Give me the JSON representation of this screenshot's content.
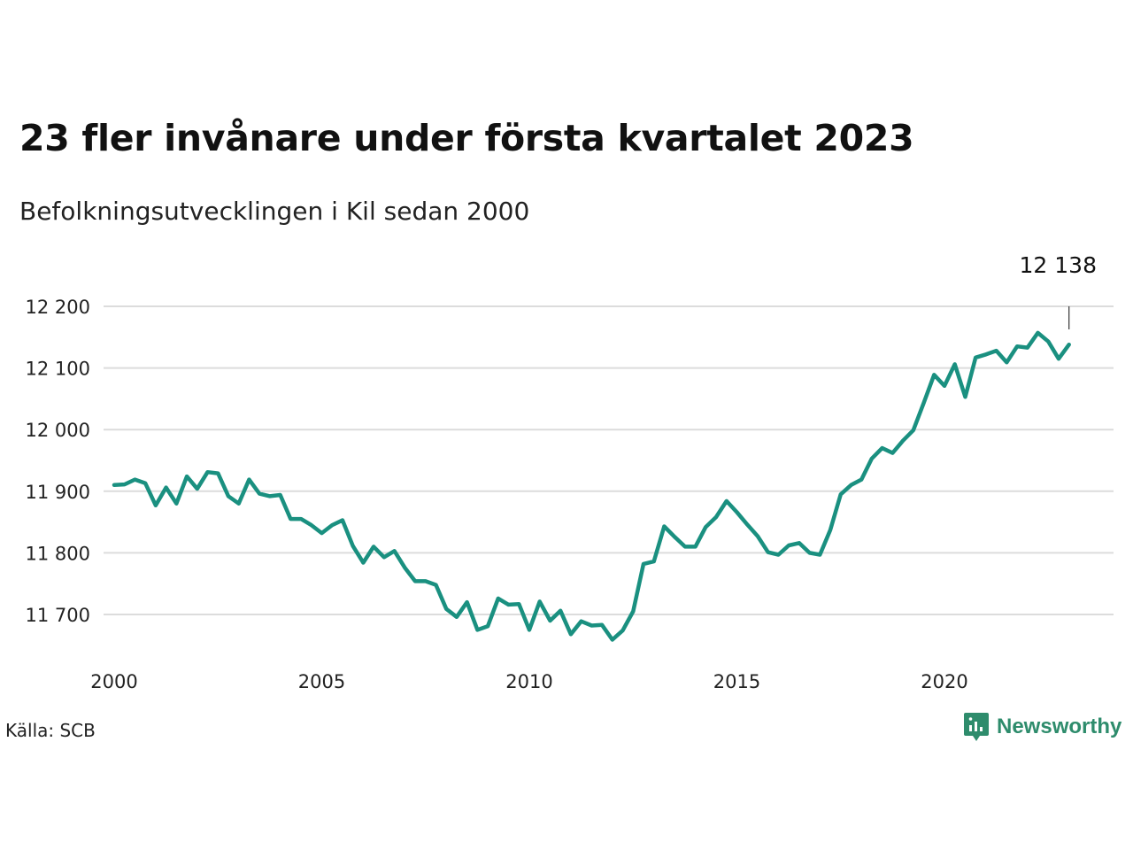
{
  "title": "23 fler invånare under första kvartalet 2023",
  "subtitle": "Befolkningsutvecklingen i Kil sedan 2000",
  "source": "Källa: SCB",
  "brand": {
    "name": "Newsworthy",
    "logo_icon": "newsworthy-logo-icon",
    "color": "#2e8c6c"
  },
  "chart_data": {
    "type": "line",
    "title": "23 fler invånare under första kvartalet 2023",
    "subtitle": "Befolkningsutvecklingen i Kil sedan 2000",
    "xlabel": "",
    "ylabel": "",
    "ylim": [
      11650,
      12200
    ],
    "xlim": [
      2000,
      2024.2
    ],
    "grid": true,
    "x_ticks": [
      2000,
      2005,
      2010,
      2015,
      2020
    ],
    "y_ticks": [
      11700,
      11800,
      11900,
      12000,
      12100,
      12200
    ],
    "y_tick_labels": [
      "11 700",
      "11 800",
      "11 900",
      "12 000",
      "12 100",
      "12 200"
    ],
    "end_label": "12 138",
    "line_color": "#1a9080",
    "series": [
      {
        "x": [
          2000.0,
          2000.25,
          2000.5,
          2000.75,
          2001.0,
          2001.25,
          2001.5,
          2001.75,
          2002.0,
          2002.25,
          2002.5,
          2002.75,
          2003.0,
          2003.25,
          2003.5,
          2003.75,
          2004.0,
          2004.25,
          2004.5,
          2004.75,
          2005.0,
          2005.25,
          2005.5,
          2005.75,
          2006.0,
          2006.25,
          2006.5,
          2006.75,
          2007.0,
          2007.25,
          2007.5,
          2007.75,
          2008.0,
          2008.25,
          2008.5,
          2008.75,
          2009.0,
          2009.25,
          2009.5,
          2009.75,
          2010.0,
          2010.25,
          2010.5,
          2010.75,
          2011.0,
          2011.25,
          2011.5,
          2011.75,
          2012.0,
          2012.25,
          2012.5,
          2012.75,
          2013.0,
          2013.25,
          2013.5,
          2013.75,
          2014.0,
          2014.25,
          2014.5,
          2014.75,
          2015.0,
          2015.25,
          2015.5,
          2015.75,
          2016.0,
          2016.25,
          2016.5,
          2016.75,
          2017.0,
          2017.25,
          2017.5,
          2017.75,
          2018.0,
          2018.25,
          2018.5,
          2018.75,
          2019.0,
          2019.25,
          2019.5,
          2019.75,
          2020.0,
          2020.25,
          2020.5,
          2020.75,
          2021.0,
          2021.25,
          2021.5,
          2021.75,
          2022.0,
          2022.25,
          2022.5,
          2022.75,
          2023.0
        ],
        "y": [
          11910,
          11911,
          11919,
          11913,
          11877,
          11906,
          11880,
          11924,
          11904,
          11931,
          11929,
          11892,
          11880,
          11919,
          11896,
          11892,
          11894,
          11855,
          11855,
          11845,
          11832,
          11845,
          11853,
          11811,
          11784,
          11810,
          11793,
          11803,
          11776,
          11754,
          11754,
          11748,
          11709,
          11696,
          11720,
          11675,
          11681,
          11726,
          11716,
          11717,
          11675,
          11721,
          11690,
          11706,
          11668,
          11689,
          11682,
          11683,
          11659,
          11674,
          11705,
          11782,
          11786,
          11843,
          11826,
          11810,
          11810,
          11842,
          11858,
          11884,
          11866,
          11846,
          11827,
          11801,
          11797,
          11812,
          11816,
          11800,
          11797,
          11837,
          11895,
          11910,
          11919,
          11953,
          11970,
          11962,
          11982,
          11999,
          12043,
          12089,
          12071,
          12106,
          12053,
          12117,
          12122,
          12128,
          12109,
          12135,
          12133,
          12157,
          12143,
          12115,
          12138
        ]
      }
    ]
  }
}
